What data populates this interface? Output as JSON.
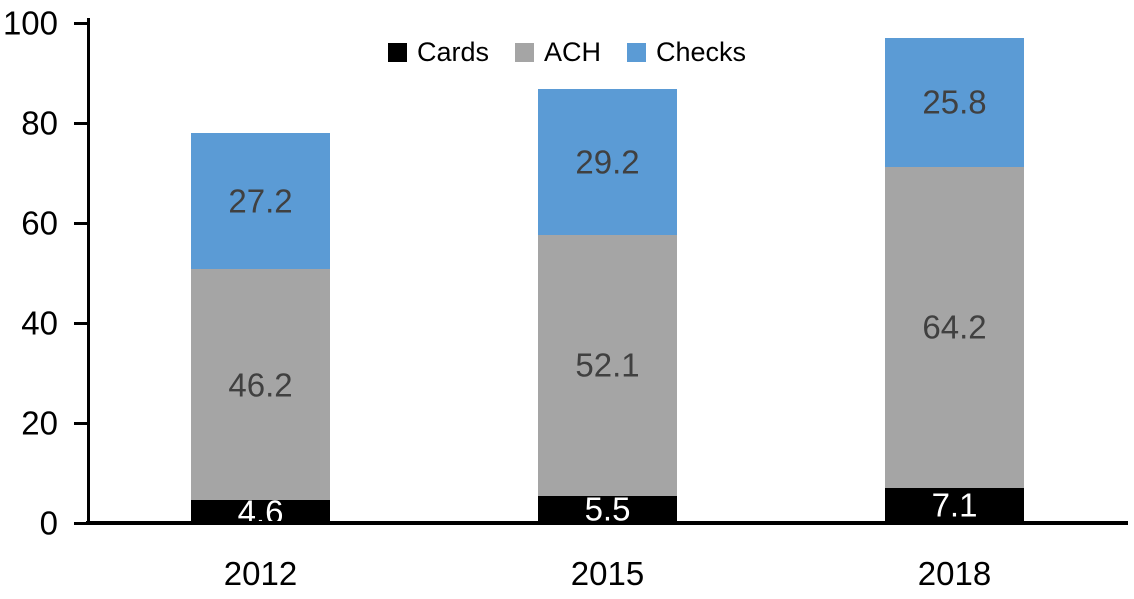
{
  "chart_data": {
    "type": "bar",
    "stacked": true,
    "title": "",
    "xlabel": "",
    "ylabel": "",
    "categories": [
      "2012",
      "2015",
      "2018"
    ],
    "series": [
      {
        "name": "Cards",
        "color": "#000000",
        "label_color": "#ffffff",
        "values": [
          4.6,
          5.5,
          7.1
        ]
      },
      {
        "name": "ACH",
        "color": "#a5a5a5",
        "label_color": "#404040",
        "values": [
          46.2,
          52.1,
          64.2
        ]
      },
      {
        "name": "Checks",
        "color": "#5b9bd5",
        "label_color": "#404040",
        "values": [
          27.2,
          29.2,
          25.8
        ]
      }
    ],
    "totals": [
      78.0,
      86.8,
      97.1
    ],
    "ylim": [
      0,
      100
    ],
    "yticks": [
      0,
      20,
      40,
      60,
      80,
      100
    ],
    "legend_position": "top-center",
    "grid": false,
    "axis_color": "#000000",
    "background_color": "#ffffff"
  }
}
